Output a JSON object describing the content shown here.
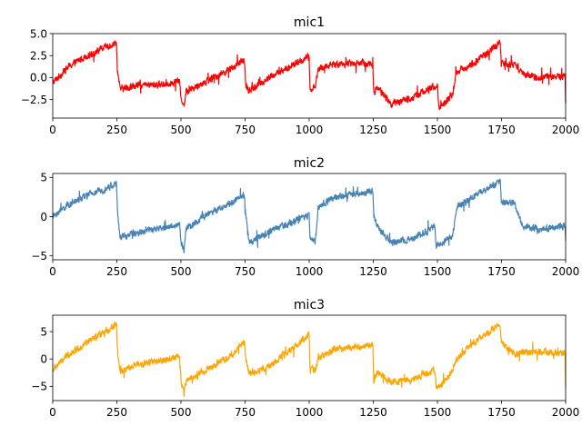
{
  "chart_data": [
    {
      "type": "line",
      "title": "mic1",
      "color": "#ff0000",
      "xlim": [
        0,
        2000
      ],
      "ylim": [
        -4.6,
        5.0
      ],
      "xticks": [
        0,
        250,
        500,
        750,
        1000,
        1250,
        1500,
        1750,
        2000
      ],
      "yticks": [
        5.0,
        2.5,
        0.0,
        -2.5
      ],
      "ytick_labels": [
        "5.0",
        "2.5",
        "0.0",
        "−2.5"
      ],
      "noise": 0.55,
      "knots": [
        [
          0,
          -0.6
        ],
        [
          60,
          1.2
        ],
        [
          120,
          2.3
        ],
        [
          180,
          3.1
        ],
        [
          248,
          4.0
        ],
        [
          252,
          1.0
        ],
        [
          262,
          -1.3
        ],
        [
          330,
          -0.9
        ],
        [
          420,
          -0.8
        ],
        [
          495,
          -0.4
        ],
        [
          500,
          -2.5
        ],
        [
          515,
          -3.0
        ],
        [
          520,
          -1.6
        ],
        [
          600,
          -0.4
        ],
        [
          700,
          1.1
        ],
        [
          748,
          2.0
        ],
        [
          752,
          -0.8
        ],
        [
          765,
          -1.5
        ],
        [
          850,
          0.1
        ],
        [
          950,
          1.6
        ],
        [
          1000,
          2.4
        ],
        [
          1003,
          -1.3
        ],
        [
          1025,
          -1.0
        ],
        [
          1035,
          1.0
        ],
        [
          1100,
          1.5
        ],
        [
          1200,
          1.7
        ],
        [
          1248,
          1.5
        ],
        [
          1252,
          -1.9
        ],
        [
          1265,
          -1.0
        ],
        [
          1320,
          -3.0
        ],
        [
          1400,
          -2.3
        ],
        [
          1500,
          -0.8
        ],
        [
          1505,
          -3.5
        ],
        [
          1540,
          -2.5
        ],
        [
          1560,
          -1.7
        ],
        [
          1575,
          0.6
        ],
        [
          1650,
          1.8
        ],
        [
          1745,
          4.0
        ],
        [
          1750,
          1.6
        ],
        [
          1800,
          1.5
        ],
        [
          1830,
          0.4
        ],
        [
          1900,
          0.0
        ],
        [
          1998,
          0.2
        ],
        [
          2000,
          -2.8
        ]
      ]
    },
    {
      "type": "line",
      "title": "mic2",
      "color": "#4682b4",
      "xlim": [
        0,
        2000
      ],
      "ylim": [
        -5.5,
        5.5
      ],
      "xticks": [
        0,
        250,
        500,
        750,
        1000,
        1250,
        1500,
        1750,
        2000
      ],
      "yticks": [
        5,
        0,
        -5
      ],
      "ytick_labels": [
        "5",
        "0",
        "−5"
      ],
      "noise": 0.6,
      "knots": [
        [
          0,
          0.0
        ],
        [
          60,
          1.5
        ],
        [
          140,
          2.8
        ],
        [
          200,
          3.5
        ],
        [
          248,
          4.2
        ],
        [
          252,
          1.0
        ],
        [
          262,
          -2.7
        ],
        [
          330,
          -2.0
        ],
        [
          420,
          -1.5
        ],
        [
          495,
          -1.0
        ],
        [
          500,
          -3.5
        ],
        [
          512,
          -4.2
        ],
        [
          520,
          -1.5
        ],
        [
          600,
          0.2
        ],
        [
          700,
          1.8
        ],
        [
          748,
          2.7
        ],
        [
          752,
          0.5
        ],
        [
          765,
          -3.3
        ],
        [
          850,
          -1.8
        ],
        [
          950,
          -0.5
        ],
        [
          1000,
          0.2
        ],
        [
          1003,
          -2.8
        ],
        [
          1025,
          -3.0
        ],
        [
          1035,
          1.2
        ],
        [
          1100,
          2.5
        ],
        [
          1200,
          3.0
        ],
        [
          1248,
          3.2
        ],
        [
          1252,
          0.2
        ],
        [
          1265,
          -1.2
        ],
        [
          1320,
          -3.4
        ],
        [
          1400,
          -2.8
        ],
        [
          1490,
          -1.3
        ],
        [
          1495,
          -3.8
        ],
        [
          1530,
          -3.2
        ],
        [
          1560,
          -2.3
        ],
        [
          1575,
          1.2
        ],
        [
          1650,
          2.8
        ],
        [
          1745,
          4.4
        ],
        [
          1750,
          1.8
        ],
        [
          1800,
          1.7
        ],
        [
          1830,
          -1.2
        ],
        [
          1900,
          -1.6
        ],
        [
          1998,
          -1.2
        ],
        [
          2000,
          -3.5
        ]
      ]
    },
    {
      "type": "line",
      "title": "mic3",
      "color": "#ffa500",
      "xlim": [
        0,
        2000
      ],
      "ylim": [
        -7.6,
        8.0
      ],
      "xticks": [
        0,
        250,
        500,
        750,
        1000,
        1250,
        1500,
        1750,
        2000
      ],
      "yticks": [
        5,
        0,
        -5
      ],
      "ytick_labels": [
        "5",
        "0",
        "−5"
      ],
      "noise": 0.85,
      "knots": [
        [
          0,
          -2.0
        ],
        [
          60,
          0.8
        ],
        [
          140,
          3.2
        ],
        [
          200,
          4.8
        ],
        [
          248,
          6.3
        ],
        [
          252,
          2.0
        ],
        [
          262,
          -2.5
        ],
        [
          330,
          -1.0
        ],
        [
          420,
          -0.3
        ],
        [
          495,
          0.5
        ],
        [
          500,
          -4.0
        ],
        [
          512,
          -6.2
        ],
        [
          520,
          -4.0
        ],
        [
          600,
          -2.0
        ],
        [
          700,
          0.8
        ],
        [
          748,
          3.5
        ],
        [
          752,
          0.5
        ],
        [
          765,
          -2.8
        ],
        [
          850,
          -1.2
        ],
        [
          950,
          2.5
        ],
        [
          1000,
          4.6
        ],
        [
          1003,
          -1.5
        ],
        [
          1025,
          -2.2
        ],
        [
          1035,
          0.0
        ],
        [
          1100,
          1.8
        ],
        [
          1200,
          2.3
        ],
        [
          1248,
          2.8
        ],
        [
          1252,
          -4.0
        ],
        [
          1265,
          -2.5
        ],
        [
          1320,
          -4.2
        ],
        [
          1400,
          -3.8
        ],
        [
          1490,
          -2.0
        ],
        [
          1495,
          -5.5
        ],
        [
          1530,
          -4.0
        ],
        [
          1560,
          -2.0
        ],
        [
          1575,
          0.0
        ],
        [
          1650,
          3.2
        ],
        [
          1745,
          6.3
        ],
        [
          1750,
          3.0
        ],
        [
          1800,
          0.8
        ],
        [
          1830,
          1.2
        ],
        [
          1900,
          1.3
        ],
        [
          1998,
          1.0
        ],
        [
          2000,
          -4.8
        ]
      ]
    }
  ]
}
